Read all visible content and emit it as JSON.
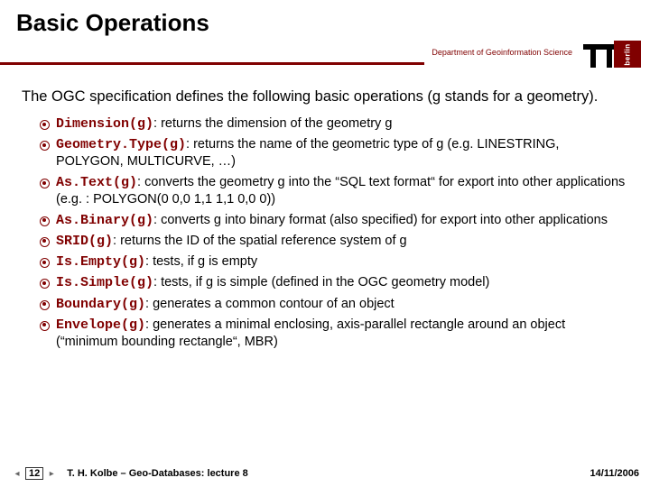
{
  "title": "Basic Operations",
  "department": "Department of Geoinformation Science",
  "logo_text": "berlin",
  "intro": "The OGC specification defines the following basic operations (g stands for a geometry).",
  "accent_color": "#800000",
  "operations": [
    {
      "fn": "Dimension(g)",
      "desc": ": returns the dimension of the geometry g"
    },
    {
      "fn": "Geometry.Type(g)",
      "desc": ": returns the name of the geometric type of g (e.g. LINESTRING, POLYGON, MULTICURVE, …)"
    },
    {
      "fn": "As.Text(g)",
      "desc": ": converts the geometry g into the “SQL text format“ for export into other applications (e.g. : POLYGON(0 0,0 1,1 1,1 0,0 0))"
    },
    {
      "fn": "As.Binary(g)",
      "desc": ": converts g into binary format (also specified) for export into other applications"
    },
    {
      "fn": "SRID(g)",
      "desc": ": returns the ID of the spatial reference system of g"
    },
    {
      "fn": "Is.Empty(g)",
      "desc": ": tests, if g is empty"
    },
    {
      "fn": "Is.Simple(g)",
      "desc": ": tests, if g is simple (defined in the OGC geometry model)"
    },
    {
      "fn": "Boundary(g)",
      "desc": ": generates a common contour of an object"
    },
    {
      "fn": "Envelope(g)",
      "desc": ": generates a minimal enclosing, axis-parallel rectangle around an object (“minimum bounding rectangle“, MBR)"
    }
  ],
  "footer": {
    "page": "12",
    "lecturer": "T. H. Kolbe – Geo-Databases: lecture 8",
    "date": "14/11/2006"
  }
}
